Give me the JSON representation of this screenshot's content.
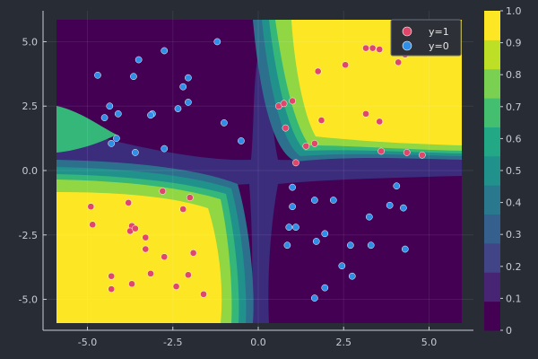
{
  "chart_data": {
    "type": "scatter",
    "title": "",
    "xlabel": "",
    "ylabel": "",
    "xlim": [
      -6.3,
      6.3
    ],
    "ylim": [
      -6.2,
      6.2
    ],
    "x_ticks": [
      -5.0,
      -2.5,
      0.0,
      2.5,
      5.0
    ],
    "x_tick_labels": [
      "-5.0",
      "-2.5",
      "0.0",
      "2.5",
      "5.0"
    ],
    "y_ticks": [
      -5.0,
      -2.5,
      0.0,
      2.5,
      5.0
    ],
    "y_tick_labels": [
      "-5.0",
      "-2.5",
      "0.0",
      "2.5",
      "5.0"
    ],
    "grid": true,
    "legend_position": "top-right",
    "background_contour": {
      "type": "filled-contour",
      "description_levels": [
        0,
        0.1,
        0.2,
        0.3,
        0.4,
        0.5,
        0.6,
        0.7,
        0.8,
        0.9,
        1.0
      ],
      "colorbar_ticks": [
        0,
        0.1,
        0.2,
        0.3,
        0.4,
        0.5,
        0.6,
        0.7,
        0.8,
        0.9,
        1.0
      ],
      "colorbar_tick_labels": [
        "0",
        "0.1",
        "0.2",
        "0.3",
        "0.4",
        "0.5",
        "0.6",
        "0.7",
        "0.8",
        "0.9",
        "1.0"
      ]
    },
    "series": [
      {
        "name": "y=1",
        "color": "#e0466a",
        "points": [
          [
            -4.9,
            -1.4
          ],
          [
            -4.85,
            -2.1
          ],
          [
            -3.8,
            -1.25
          ],
          [
            -3.7,
            -2.15
          ],
          [
            -3.75,
            -2.35
          ],
          [
            -3.6,
            -2.25
          ],
          [
            -3.3,
            -2.6
          ],
          [
            -3.3,
            -3.05
          ],
          [
            -2.8,
            -0.8
          ],
          [
            -2.2,
            -1.5
          ],
          [
            -2.0,
            -1.05
          ],
          [
            -2.75,
            -3.35
          ],
          [
            -1.9,
            -3.2
          ],
          [
            -3.15,
            -4.0
          ],
          [
            -2.4,
            -4.5
          ],
          [
            -3.7,
            -4.4
          ],
          [
            -4.3,
            -4.1
          ],
          [
            -4.3,
            -4.6
          ],
          [
            -2.05,
            -4.05
          ],
          [
            -1.6,
            -4.8
          ],
          [
            1.0,
            2.7
          ],
          [
            1.1,
            0.3
          ],
          [
            0.6,
            2.5
          ],
          [
            0.75,
            2.6
          ],
          [
            0.8,
            1.65
          ],
          [
            1.4,
            0.95
          ],
          [
            1.65,
            1.05
          ],
          [
            1.75,
            3.85
          ],
          [
            1.85,
            1.95
          ],
          [
            2.55,
            4.1
          ],
          [
            3.15,
            4.75
          ],
          [
            3.35,
            4.75
          ],
          [
            3.55,
            4.7
          ],
          [
            3.15,
            2.2
          ],
          [
            3.55,
            1.9
          ],
          [
            3.6,
            0.75
          ],
          [
            4.1,
            4.2
          ],
          [
            4.35,
            0.7
          ],
          [
            4.8,
            0.6
          ],
          [
            4.3,
            4.5
          ]
        ]
      },
      {
        "name": "y=0",
        "color": "#2f8fe6",
        "points": [
          [
            -4.7,
            3.7
          ],
          [
            -4.35,
            2.5
          ],
          [
            -4.1,
            2.2
          ],
          [
            -4.5,
            2.05
          ],
          [
            -4.3,
            1.05
          ],
          [
            -4.15,
            1.25
          ],
          [
            -3.5,
            4.3
          ],
          [
            -3.65,
            3.65
          ],
          [
            -3.1,
            2.2
          ],
          [
            -3.15,
            2.15
          ],
          [
            -2.75,
            4.65
          ],
          [
            -2.2,
            3.25
          ],
          [
            -2.05,
            3.6
          ],
          [
            -2.35,
            2.4
          ],
          [
            -2.05,
            2.65
          ],
          [
            -2.75,
            0.85
          ],
          [
            -3.6,
            0.7
          ],
          [
            -1.2,
            5.0
          ],
          [
            -1.0,
            1.85
          ],
          [
            -0.5,
            1.15
          ],
          [
            1.0,
            -0.65
          ],
          [
            1.65,
            -1.15
          ],
          [
            2.2,
            -1.15
          ],
          [
            0.9,
            -2.2
          ],
          [
            1.1,
            -2.2
          ],
          [
            1.0,
            -1.4
          ],
          [
            0.85,
            -2.9
          ],
          [
            1.95,
            -2.45
          ],
          [
            1.7,
            -2.75
          ],
          [
            2.7,
            -2.9
          ],
          [
            3.25,
            -1.8
          ],
          [
            3.3,
            -2.9
          ],
          [
            3.85,
            -1.35
          ],
          [
            4.05,
            -0.6
          ],
          [
            4.25,
            -1.45
          ],
          [
            4.3,
            -3.05
          ],
          [
            2.45,
            -3.7
          ],
          [
            2.75,
            -4.1
          ],
          [
            1.95,
            -4.55
          ],
          [
            1.65,
            -4.95
          ]
        ]
      }
    ]
  },
  "colors": {
    "background": "#282c34",
    "frame": "#c8ccd4",
    "legend_bg": "#2e3038",
    "legend_border": "#6b7080"
  }
}
